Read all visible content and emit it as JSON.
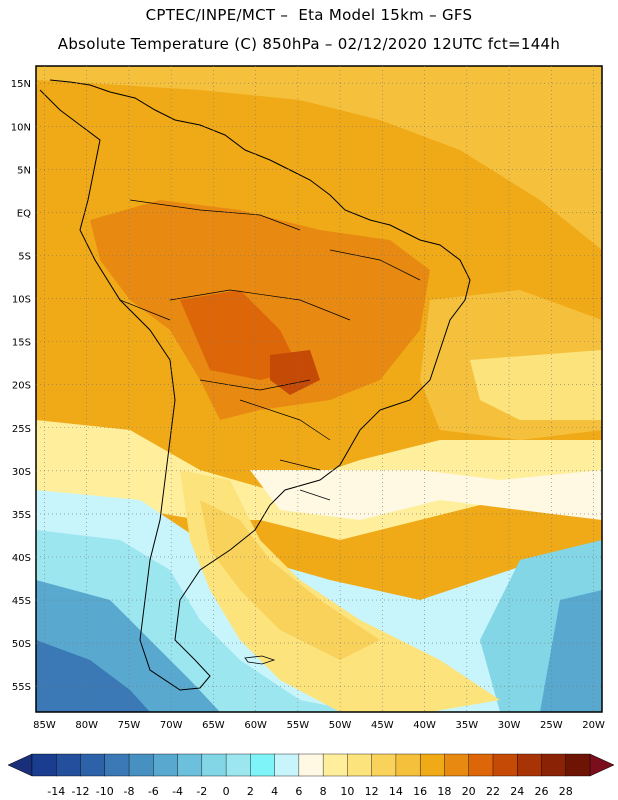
{
  "header": {
    "line1": "CPTEC/INPE/MCT –  Eta Model 15km – GFS",
    "line2": "Absolute Temperature (C) 850hPa – 02/12/2020 12UTC fct=144h"
  },
  "map": {
    "lat_labels": [
      "15N",
      "10N",
      "5N",
      "EQ",
      "5S",
      "10S",
      "15S",
      "20S",
      "25S",
      "30S",
      "35S",
      "40S",
      "45S",
      "50S",
      "55S"
    ],
    "lon_labels": [
      "85W",
      "80W",
      "75W",
      "70W",
      "65W",
      "60W",
      "55W",
      "50W",
      "45W",
      "40W",
      "35W",
      "30W",
      "25W",
      "20W"
    ],
    "lon_extent": [
      -86,
      -19
    ],
    "lat_extent": [
      17,
      -58
    ],
    "grid": "dotted"
  },
  "colorbar": {
    "levels": [
      "-14",
      "-12",
      "-10",
      "-8",
      "-6",
      "-4",
      "-2",
      "0",
      "2",
      "4",
      "6",
      "8",
      "10",
      "12",
      "14",
      "16",
      "18",
      "20",
      "22",
      "24",
      "26",
      "28"
    ],
    "colors": [
      "#1a3d8f",
      "#244f9c",
      "#2e62a8",
      "#3a78b6",
      "#4790c2",
      "#58a8cf",
      "#6cc0db",
      "#82d6e6",
      "#9ce6ef",
      "#7ff4f8",
      "#c8f4fb",
      "#fff8e2",
      "#ffef9c",
      "#fde37c",
      "#f9d25c",
      "#f5c13c",
      "#f0aa18",
      "#e88a12",
      "#dc6608",
      "#c44a06",
      "#a83406",
      "#8a2206",
      "#6e1404"
    ],
    "low_cap": "#1a2f7a",
    "high_cap": "#7a0e1c"
  }
}
